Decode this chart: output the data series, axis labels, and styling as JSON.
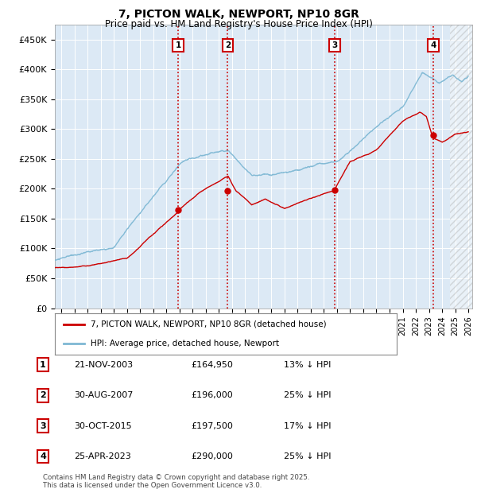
{
  "title": "7, PICTON WALK, NEWPORT, NP10 8GR",
  "subtitle": "Price paid vs. HM Land Registry's House Price Index (HPI)",
  "ylabel_ticks": [
    "£0",
    "£50K",
    "£100K",
    "£150K",
    "£200K",
    "£250K",
    "£300K",
    "£350K",
    "£400K",
    "£450K"
  ],
  "ytick_values": [
    0,
    50000,
    100000,
    150000,
    200000,
    250000,
    300000,
    350000,
    400000,
    450000
  ],
  "ylim": [
    0,
    475000
  ],
  "xlim_start": 1994.5,
  "xlim_end": 2026.3,
  "hpi_color": "#7eb8d4",
  "price_color": "#cc0000",
  "purchase_dates": [
    2003.896,
    2007.663,
    2015.831,
    2023.319
  ],
  "purchase_prices": [
    164950,
    196000,
    197500,
    290000
  ],
  "purchase_labels": [
    "1",
    "2",
    "3",
    "4"
  ],
  "vline_color": "#cc0000",
  "plot_bg_color": "#dce9f5",
  "legend_items": [
    "7, PICTON WALK, NEWPORT, NP10 8GR (detached house)",
    "HPI: Average price, detached house, Newport"
  ],
  "table_entries": [
    [
      "1",
      "21-NOV-2003",
      "£164,950",
      "13% ↓ HPI"
    ],
    [
      "2",
      "30-AUG-2007",
      "£196,000",
      "25% ↓ HPI"
    ],
    [
      "3",
      "30-OCT-2015",
      "£197,500",
      "17% ↓ HPI"
    ],
    [
      "4",
      "25-APR-2023",
      "£290,000",
      "25% ↓ HPI"
    ]
  ],
  "footer": "Contains HM Land Registry data © Crown copyright and database right 2025.\nThis data is licensed under the Open Government Licence v3.0.",
  "hatch_start": 2024.6
}
